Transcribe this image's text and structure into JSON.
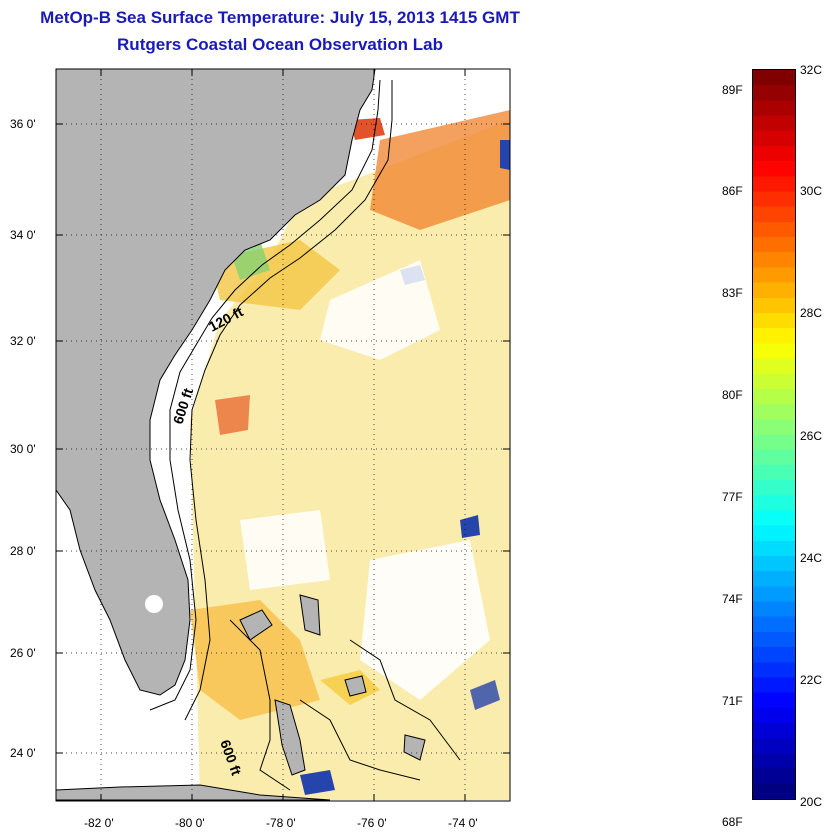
{
  "title": {
    "line1": "MetOp-B Sea Surface Temperature:  July 15, 2013 1415 GMT",
    "line2": "Rutgers Coastal Ocean Observation Lab"
  },
  "map": {
    "lon_range": [
      -83,
      -73
    ],
    "lat_range": [
      23,
      37
    ],
    "lat_ticks": [
      "24 0'",
      "26 0'",
      "28 0'",
      "30 0'",
      "32 0'",
      "34 0'",
      "36 0'"
    ],
    "lon_ticks": [
      "-82 0'",
      "-80 0'",
      "-78 0'",
      "-76 0'",
      "-74 0'"
    ],
    "contour_labels": [
      "120 ft",
      "600 ft",
      "600 ft"
    ],
    "land_color": "#b4b4b4",
    "grid": "dotted"
  },
  "colorbar": {
    "range_c": [
      20,
      32
    ],
    "celsius_labels": [
      "32C",
      "30C",
      "28C",
      "26C",
      "24C",
      "22C",
      "20C"
    ],
    "fahrenheit_labels": [
      "89F",
      "86F",
      "83F",
      "80F",
      "77F",
      "74F",
      "71F",
      "68F"
    ],
    "colormap": "jet"
  }
}
